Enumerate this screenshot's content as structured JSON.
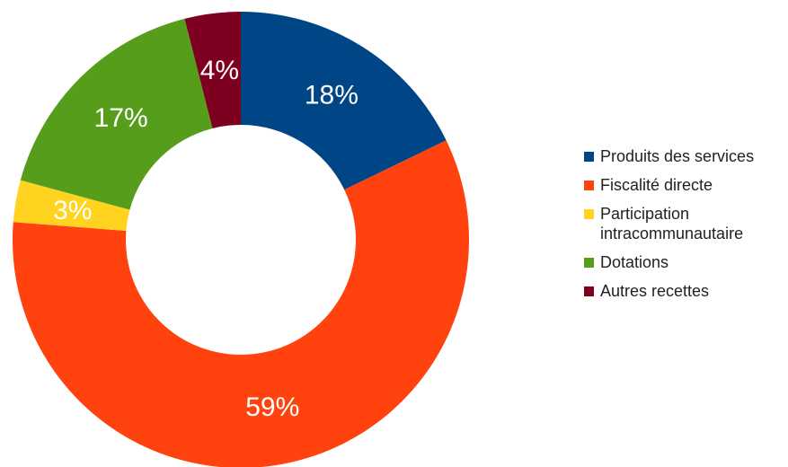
{
  "chart_data": {
    "type": "pie",
    "variant": "donut",
    "title": "",
    "slices": [
      {
        "label": "Produits des services",
        "value": 18,
        "display": "18%",
        "color": "#004586"
      },
      {
        "label": "Fiscalité directe",
        "value": 59,
        "display": "59%",
        "color": "#ff420e"
      },
      {
        "label": "Participation intracommunautaire",
        "value": 3,
        "display": "3%",
        "color": "#ffd320"
      },
      {
        "label": "Dotations",
        "value": 17,
        "display": "17%",
        "color": "#579d1c"
      },
      {
        "label": "Autres recettes",
        "value": 4,
        "display": "4%",
        "color": "#7e0021"
      }
    ],
    "legend": {
      "position": "right",
      "items": [
        {
          "label": "Produits des services",
          "color": "#004586"
        },
        {
          "label": "Fiscalité directe",
          "color": "#ff420e"
        },
        {
          "label": "Participation",
          "label2": "intracommunautaire",
          "color": "#ffd320"
        },
        {
          "label": "Dotations",
          "color": "#579d1c"
        },
        {
          "label": "Autres recettes",
          "color": "#7e0021"
        }
      ]
    }
  }
}
